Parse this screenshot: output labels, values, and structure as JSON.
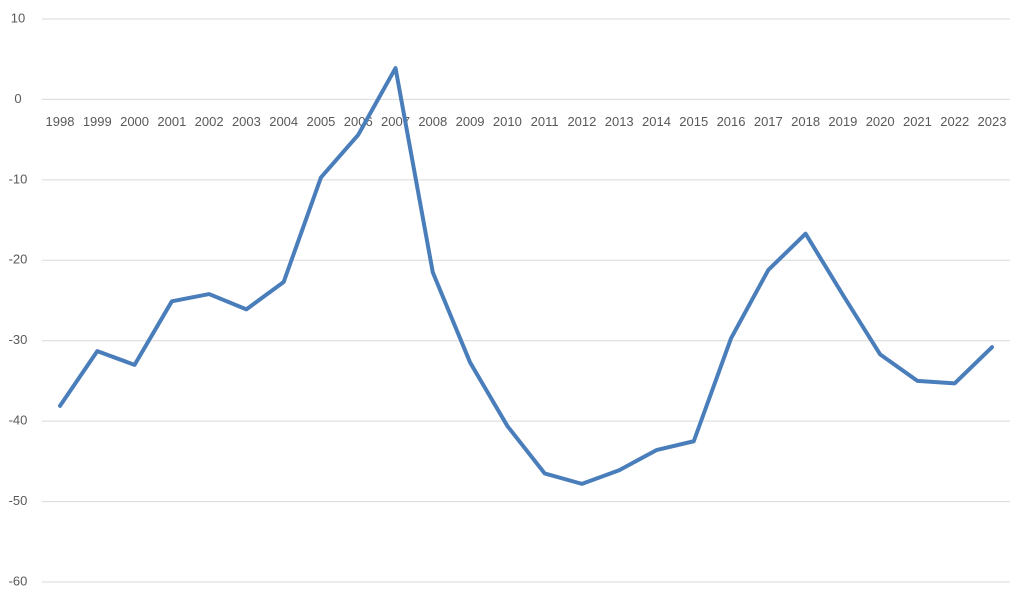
{
  "chart_data": {
    "type": "line",
    "categories": [
      "1998",
      "1999",
      "2000",
      "2001",
      "2002",
      "2003",
      "2004",
      "2005",
      "2006",
      "2007",
      "2008",
      "2009",
      "2010",
      "2011",
      "2012",
      "2013",
      "2014",
      "2015",
      "2016",
      "2017",
      "2018",
      "2019",
      "2020",
      "2021",
      "2022",
      "2023"
    ],
    "series": [
      {
        "name": null,
        "color": "#4a7ebb",
        "values": [
          -38.1,
          -31.3,
          -33.0,
          -25.1,
          -24.2,
          -26.1,
          -22.7,
          -9.7,
          -4.4,
          3.9,
          -21.5,
          -32.7,
          -40.6,
          -46.5,
          -47.8,
          -46.1,
          -43.6,
          -42.5,
          -29.7,
          -21.2,
          -16.7,
          -24.3,
          -31.7,
          -35.0,
          -35.3,
          -30.8
        ]
      }
    ],
    "ylim": [
      -60,
      10
    ],
    "yticks": [
      -60,
      -50,
      -40,
      -30,
      -20,
      -10,
      0,
      10
    ],
    "grid": true
  }
}
